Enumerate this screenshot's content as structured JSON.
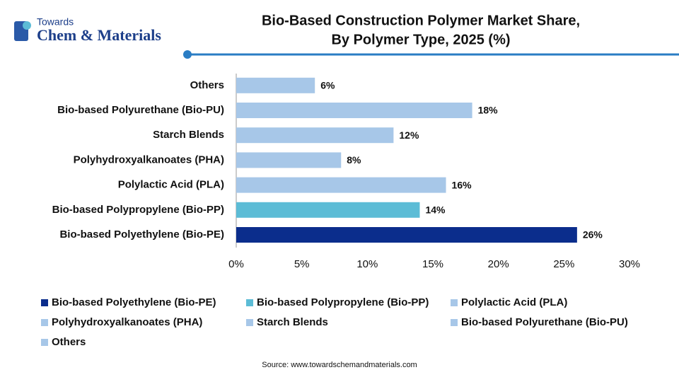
{
  "logo": {
    "top": "Towards",
    "main": "Chem & Materials"
  },
  "chart_data": {
    "type": "bar",
    "orientation": "horizontal",
    "title": [
      "Bio-Based Construction Polymer Market Share,",
      "By Polymer Type, 2025 (%)"
    ],
    "categories": [
      "Bio-based Polyethylene (Bio-PE)",
      "Bio-based Polypropylene (Bio-PP)",
      "Polylactic Acid (PLA)",
      "Polyhydroxyalkanoates (PHA)",
      "Starch Blends",
      "Bio-based Polyurethane (Bio-PU)",
      "Others"
    ],
    "values": [
      26,
      14,
      16,
      8,
      12,
      18,
      6
    ],
    "value_labels": [
      "26%",
      "14%",
      "16%",
      "8%",
      "12%",
      "18%",
      "6%"
    ],
    "colors": [
      "#0b2d8c",
      "#5cbcd6",
      "#a7c7e8",
      "#a7c7e8",
      "#a7c7e8",
      "#a7c7e8",
      "#a7c7e8"
    ],
    "xlim": [
      0,
      30
    ],
    "xticks": [
      {
        "value": 0,
        "label": "0%"
      },
      {
        "value": 5,
        "label": "5%"
      },
      {
        "value": 10,
        "label": "10%"
      },
      {
        "value": 15,
        "label": "15%"
      },
      {
        "value": 20,
        "label": "20%"
      },
      {
        "value": 25,
        "label": "25%"
      },
      {
        "value": 30,
        "label": "30%"
      }
    ],
    "grid": false,
    "source": "Source: www.towardschemandmaterials.com"
  }
}
